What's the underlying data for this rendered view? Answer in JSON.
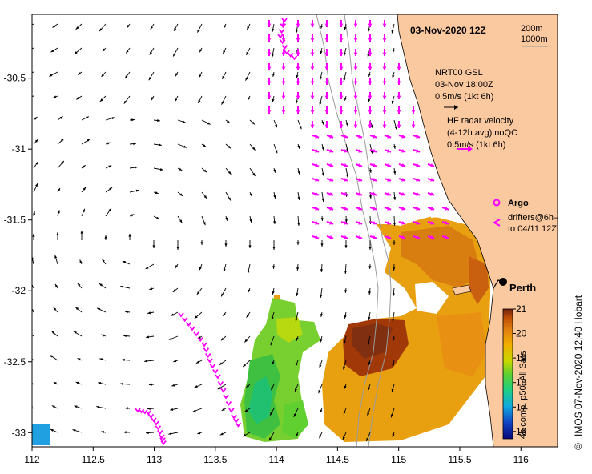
{
  "map": {
    "date_title": "03-Nov-2020 12Z",
    "x_ticks": [
      "112",
      "112.5",
      "113",
      "113.5",
      "114",
      "114.5",
      "115",
      "115.5",
      "116"
    ],
    "y_ticks": [
      "-30.5",
      "-31",
      "-31.5",
      "-32",
      "-32.5",
      "-33"
    ],
    "lon_range": [
      112,
      116.3
    ],
    "lat_range": [
      -33.1,
      -30.05
    ],
    "ocean_color": "#ffffff",
    "land_color": "#fbc9a0"
  },
  "legend": {
    "isobath_shallow": "200m",
    "isobath_deep": "1000m",
    "model_name": "NRT00 GSL",
    "model_time": "03-Nov 18:00Z",
    "model_scale": "0.5m/s (1kt 6h)",
    "radar_title": "HF radar velocity",
    "radar_avg": "(4-12h avg) noQC",
    "radar_scale": "0.5m/s (1kt 6h)",
    "argo_label": "Argo",
    "drifters_label_1": "drifters@6h–",
    "drifters_label_2": "to 04/11 12Z",
    "city": "Perth"
  },
  "colorbar": {
    "ticks": [
      "21",
      "20",
      "19",
      "18",
      "17",
      "16"
    ],
    "range": [
      15.7,
      21
    ],
    "label": "4h comp. p50, All Sats",
    "colors": [
      "#08087a",
      "#1040c0",
      "#10a8e0",
      "#20d080",
      "#60d030",
      "#c8d800",
      "#f0b000",
      "#e08010",
      "#c05008",
      "#702010"
    ]
  },
  "credit": {
    "symbol": "©",
    "text": "IMOS 07-Nov-2020 12:40 Hobart"
  },
  "colors": {
    "model_arrow": "#000000",
    "radar_arrow": "#ff00ff",
    "isobath": "#999999"
  }
}
